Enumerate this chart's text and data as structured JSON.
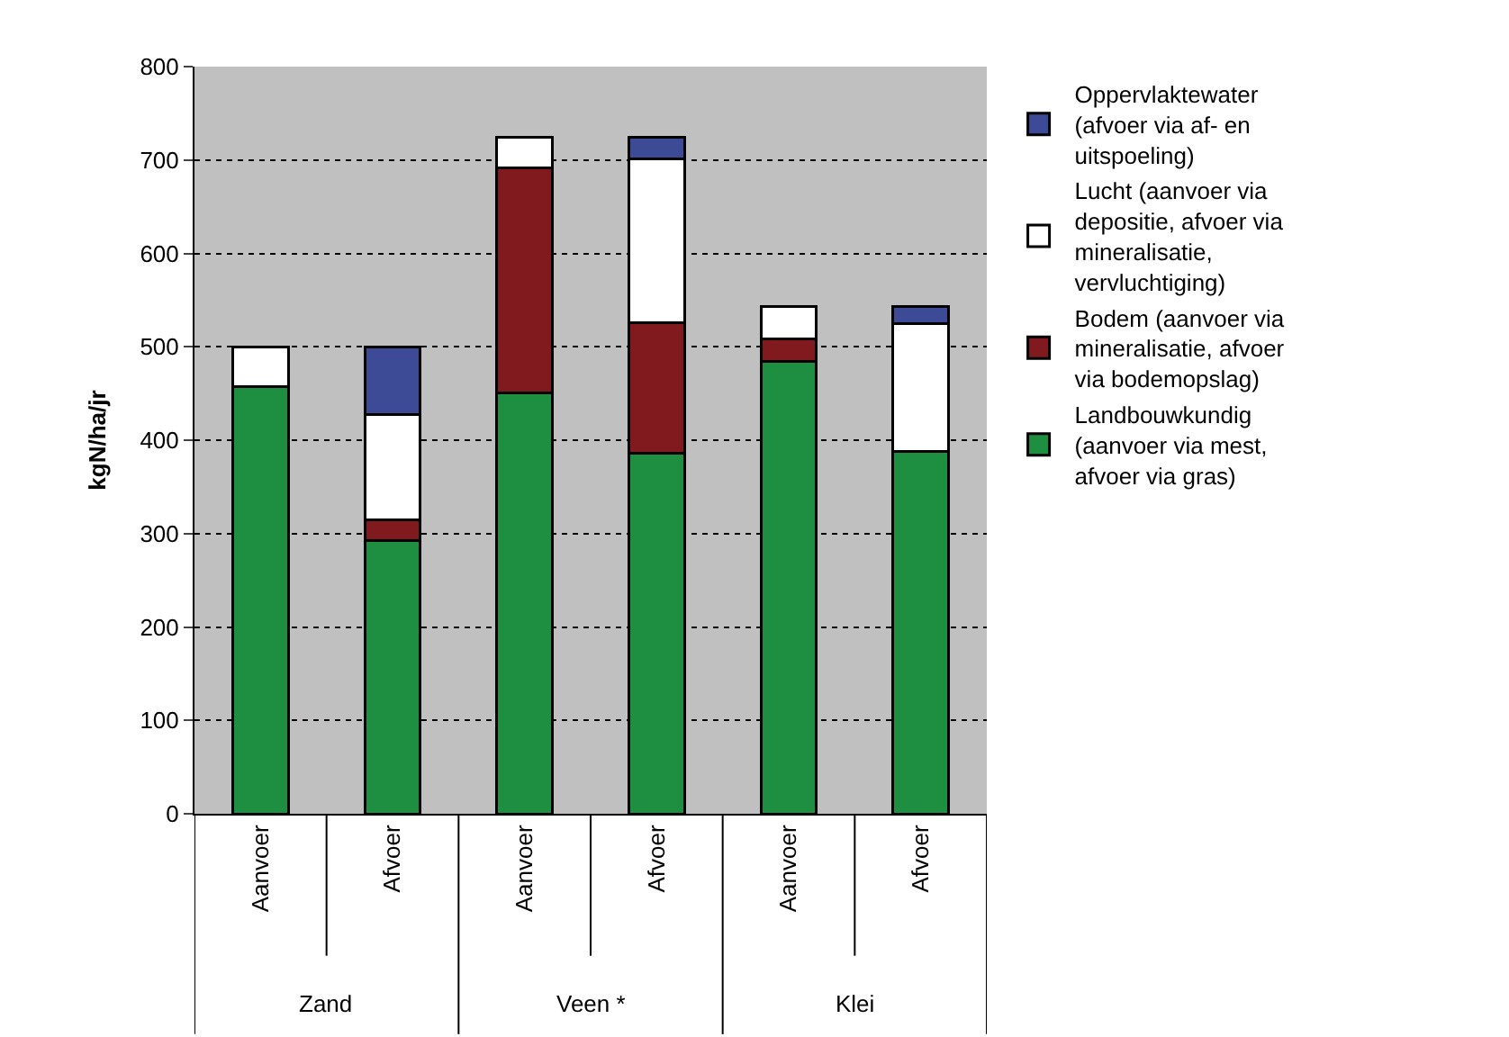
{
  "chart_data": {
    "type": "bar",
    "stacked": true,
    "ylabel": "kgN/ha/jr",
    "categories": [
      "Aanvoer",
      "Afvoer",
      "Aanvoer",
      "Afvoer",
      "Aanvoer",
      "Afvoer"
    ],
    "annotations": [
      "Zand",
      "Veen *",
      "Klei"
    ],
    "series": [
      {
        "name": "Landbouwkundig (aanvoer via mest, afvoer via gras)",
        "color": "#1e8f41",
        "values": [
          457,
          293,
          451,
          386,
          484,
          388
        ]
      },
      {
        "name": "Bodem (aanvoer via mineralisatie, afvoer via bodemopslag)",
        "color": "#801a1f",
        "values": [
          null,
          22,
          241,
          140,
          24,
          null
        ]
      },
      {
        "name": "Lucht (aanvoer via depositie, afvoer via mineralisatie, vervluchtiging)",
        "color": "#ffffff",
        "values": [
          43,
          112,
          32,
          175,
          35,
          137
        ]
      },
      {
        "name": "Oppervlaktewater (afvoer via af- en uitspoeling)",
        "color": "#3d4b97",
        "values": [
          null,
          73,
          null,
          23,
          null,
          18
        ]
      }
    ],
    "ylim": [
      0,
      800
    ],
    "yticks": [
      0,
      100,
      200,
      300,
      400,
      500,
      600,
      700,
      800
    ],
    "grid": "y",
    "legend": "right"
  }
}
